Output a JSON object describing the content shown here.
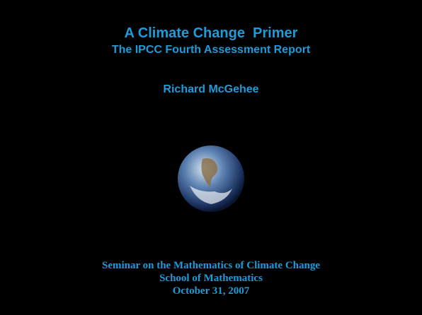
{
  "title": "A Climate Change  Primer",
  "subtitle": "The IPCC Fourth Assessment Report",
  "author": "Richard McGehee",
  "footer": [
    "Seminar on the Mathematics of Climate Change",
    "School of Mathematics",
    "October 31, 2007"
  ]
}
